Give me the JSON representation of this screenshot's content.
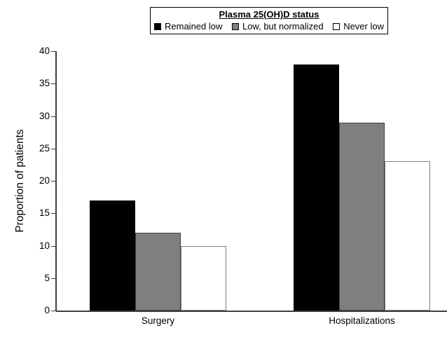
{
  "chart_data": {
    "type": "bar",
    "title": "",
    "legend_title": "Plasma 25(OH)D status",
    "legend_position": "top",
    "categories": [
      "Surgery",
      "Hospitalizations"
    ],
    "series": [
      {
        "name": "Remained low",
        "color": "#000000",
        "border_color": "#000000",
        "values": [
          17,
          38
        ]
      },
      {
        "name": "Low, but normalized",
        "color": "#7f7f7f",
        "border_color": "#3f3f3f",
        "values": [
          12,
          29
        ]
      },
      {
        "name": "Never low",
        "color": "#ffffff",
        "border_color": "#7f7f7f",
        "values": [
          10,
          23
        ]
      }
    ],
    "xlabel": "",
    "ylabel": "Proportion of patients",
    "ylim": [
      0,
      40
    ],
    "ytick_step": 5,
    "yticks": [
      0,
      5,
      10,
      15,
      20,
      25,
      30,
      35,
      40
    ],
    "grid": false
  },
  "colors": {
    "background": "#ffffff",
    "axis": "#3f3f3f",
    "text": "#000000"
  }
}
